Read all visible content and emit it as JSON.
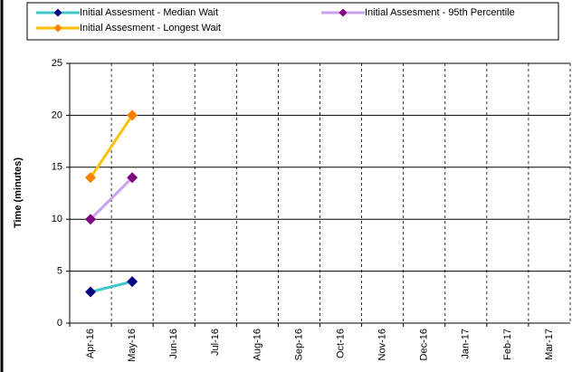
{
  "chart_data": {
    "type": "line",
    "y_label": "Time (minutes)",
    "categories": [
      "Apr-16",
      "May-16",
      "Jun-16",
      "Jul-16",
      "Aug-16",
      "Sep-16",
      "Oct-16",
      "Nov-16",
      "Dec-16",
      "Jan-17",
      "Feb-17",
      "Mar-17"
    ],
    "series": [
      {
        "name": "Initial Assesment - Median Wait",
        "color": "#40c8c8",
        "marker_color": "#000080",
        "values": [
          3,
          4,
          null,
          null,
          null,
          null,
          null,
          null,
          null,
          null,
          null,
          null
        ]
      },
      {
        "name": "Initial Assesment - 95th Percentile",
        "color": "#c8a0ec",
        "marker_color": "#800080",
        "values": [
          10,
          14,
          null,
          null,
          null,
          null,
          null,
          null,
          null,
          null,
          null,
          null
        ]
      },
      {
        "name": "Initial Assesment - Longest Wait",
        "color": "#ffc000",
        "marker_color": "#ff8000",
        "values": [
          14,
          20,
          null,
          null,
          null,
          null,
          null,
          null,
          null,
          null,
          null,
          null
        ]
      }
    ],
    "ylim": [
      0,
      25
    ],
    "yticks": [
      0,
      5,
      10,
      15,
      20,
      25
    ],
    "grid": true
  }
}
